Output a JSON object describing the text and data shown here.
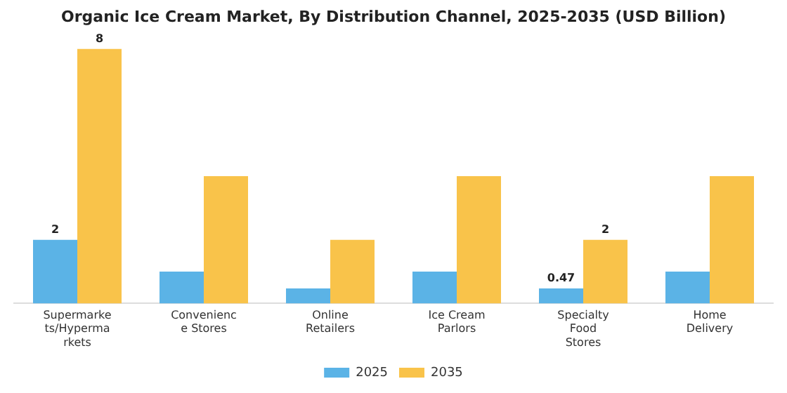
{
  "chart_data": {
    "type": "bar",
    "title": "Organic Ice Cream Market, By Distribution Channel, 2025-2035 (USD Billion)",
    "categories": [
      "Supermarke\nts/Hyperma\nrkets",
      "Convenienc\ne Stores",
      "Online\nRetailers",
      "Ice Cream\nParlors",
      "Specialty\nFood\nStores",
      "Home\nDelivery"
    ],
    "series": [
      {
        "name": "2025",
        "color": "#5bb3e6",
        "values": [
          2,
          1,
          0.47,
          1,
          0.47,
          1
        ],
        "value_labels": [
          "2",
          null,
          null,
          null,
          "0.47",
          null
        ]
      },
      {
        "name": "2035",
        "color": "#f9c34a",
        "values": [
          8,
          4,
          2,
          4,
          2,
          4
        ],
        "value_labels": [
          "8",
          null,
          null,
          null,
          "2",
          null
        ]
      }
    ],
    "legend": "bottom",
    "grid": false
  }
}
